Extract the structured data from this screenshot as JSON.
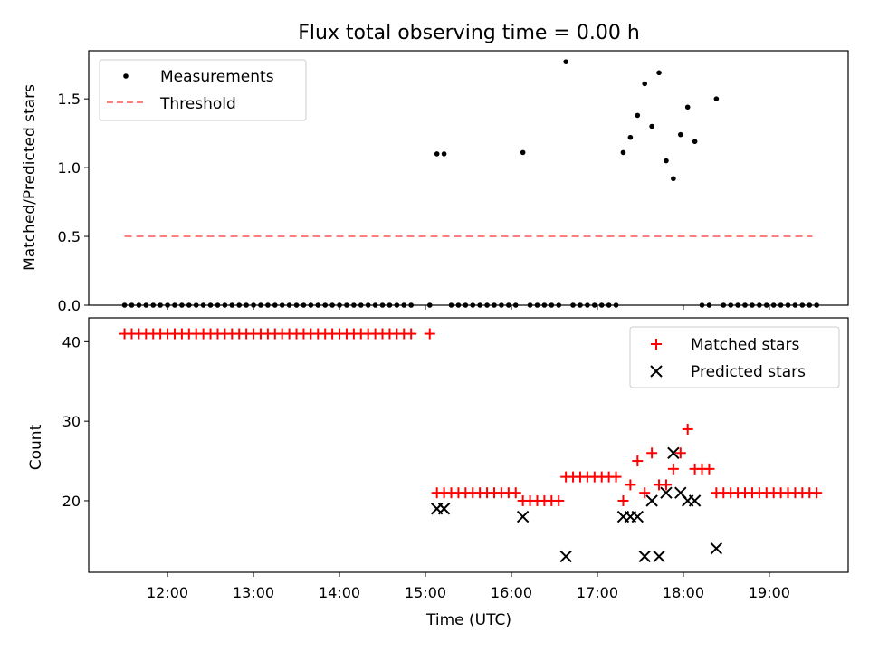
{
  "figure": {
    "title": "Flux total observing time = 0.00 h",
    "xlabel": "Time (UTC)"
  },
  "chart_data": [
    {
      "type": "scatter",
      "panel": "top",
      "ylabel": "Matched/Predicted stars",
      "xlim": [
        "11:05",
        "19:55"
      ],
      "ylim": [
        0,
        1.85
      ],
      "yticks": [
        "0.0",
        "0.5",
        "1.0",
        "1.5"
      ],
      "xticks": [
        "12:00",
        "13:00",
        "14:00",
        "15:00",
        "16:00",
        "17:00",
        "18:00",
        "19:00"
      ],
      "legend_position": "top-left",
      "series": [
        {
          "name": "Measurements",
          "marker": "dot",
          "color": "#000000",
          "points": [
            [
              "11:30",
              0
            ],
            [
              "11:35",
              0
            ],
            [
              "11:40",
              0
            ],
            [
              "11:45",
              0
            ],
            [
              "11:50",
              0
            ],
            [
              "11:55",
              0
            ],
            [
              "12:00",
              0
            ],
            [
              "12:05",
              0
            ],
            [
              "12:10",
              0
            ],
            [
              "12:15",
              0
            ],
            [
              "12:20",
              0
            ],
            [
              "12:25",
              0
            ],
            [
              "12:30",
              0
            ],
            [
              "12:35",
              0
            ],
            [
              "12:40",
              0
            ],
            [
              "12:45",
              0
            ],
            [
              "12:50",
              0
            ],
            [
              "12:55",
              0
            ],
            [
              "13:00",
              0
            ],
            [
              "13:05",
              0
            ],
            [
              "13:10",
              0
            ],
            [
              "13:15",
              0
            ],
            [
              "13:20",
              0
            ],
            [
              "13:25",
              0
            ],
            [
              "13:30",
              0
            ],
            [
              "13:35",
              0
            ],
            [
              "13:40",
              0
            ],
            [
              "13:45",
              0
            ],
            [
              "13:50",
              0
            ],
            [
              "13:55",
              0
            ],
            [
              "14:00",
              0
            ],
            [
              "14:05",
              0
            ],
            [
              "14:10",
              0
            ],
            [
              "14:15",
              0
            ],
            [
              "14:20",
              0
            ],
            [
              "14:25",
              0
            ],
            [
              "14:30",
              0
            ],
            [
              "14:35",
              0
            ],
            [
              "14:40",
              0
            ],
            [
              "14:45",
              0
            ],
            [
              "14:50",
              0
            ],
            [
              "15:03",
              0
            ],
            [
              "15:08",
              1.1
            ],
            [
              "15:13",
              1.1
            ],
            [
              "15:18",
              0
            ],
            [
              "15:23",
              0
            ],
            [
              "15:28",
              0
            ],
            [
              "15:33",
              0
            ],
            [
              "15:38",
              0
            ],
            [
              "15:43",
              0
            ],
            [
              "15:48",
              0
            ],
            [
              "15:53",
              0
            ],
            [
              "15:58",
              0
            ],
            [
              "16:03",
              0
            ],
            [
              "16:08",
              1.11
            ],
            [
              "16:13",
              0
            ],
            [
              "16:18",
              0
            ],
            [
              "16:23",
              0
            ],
            [
              "16:28",
              0
            ],
            [
              "16:33",
              0
            ],
            [
              "16:38",
              1.77
            ],
            [
              "16:43",
              0
            ],
            [
              "16:48",
              0
            ],
            [
              "16:53",
              0
            ],
            [
              "16:58",
              0
            ],
            [
              "17:03",
              0
            ],
            [
              "17:08",
              0
            ],
            [
              "17:13",
              0
            ],
            [
              "17:18",
              1.11
            ],
            [
              "17:23",
              1.22
            ],
            [
              "17:28",
              1.38
            ],
            [
              "17:33",
              1.61
            ],
            [
              "17:38",
              1.3
            ],
            [
              "17:43",
              1.69
            ],
            [
              "17:48",
              1.05
            ],
            [
              "17:53",
              0.92
            ],
            [
              "17:58",
              1.24
            ],
            [
              "18:03",
              1.44
            ],
            [
              "18:08",
              1.19
            ],
            [
              "18:13",
              0
            ],
            [
              "18:18",
              0
            ],
            [
              "18:23",
              1.5
            ],
            [
              "18:28",
              0
            ],
            [
              "18:33",
              0
            ],
            [
              "18:38",
              0
            ],
            [
              "18:43",
              0
            ],
            [
              "18:48",
              0
            ],
            [
              "18:53",
              0
            ],
            [
              "18:58",
              0
            ],
            [
              "19:03",
              0
            ],
            [
              "19:08",
              0
            ],
            [
              "19:13",
              0
            ],
            [
              "19:18",
              0
            ],
            [
              "19:23",
              0
            ],
            [
              "19:28",
              0
            ],
            [
              "19:33",
              0
            ]
          ]
        },
        {
          "name": "Threshold",
          "marker": "dashed-line",
          "color": "#ff7f7f",
          "points": [
            [
              "11:30",
              0.5
            ],
            [
              "19:30",
              0.5
            ]
          ]
        }
      ]
    },
    {
      "type": "scatter",
      "panel": "bottom",
      "ylabel": "Count",
      "xlim": [
        "11:05",
        "19:55"
      ],
      "ylim": [
        11,
        43
      ],
      "yticks": [
        "20",
        "30",
        "40"
      ],
      "xticks": [
        "12:00",
        "13:00",
        "14:00",
        "15:00",
        "16:00",
        "17:00",
        "18:00",
        "19:00"
      ],
      "legend_position": "top-right",
      "series": [
        {
          "name": "Matched stars",
          "marker": "plus",
          "color": "#ff0000",
          "points": [
            [
              "11:30",
              41
            ],
            [
              "11:35",
              41
            ],
            [
              "11:40",
              41
            ],
            [
              "11:45",
              41
            ],
            [
              "11:50",
              41
            ],
            [
              "11:55",
              41
            ],
            [
              "12:00",
              41
            ],
            [
              "12:05",
              41
            ],
            [
              "12:10",
              41
            ],
            [
              "12:15",
              41
            ],
            [
              "12:20",
              41
            ],
            [
              "12:25",
              41
            ],
            [
              "12:30",
              41
            ],
            [
              "12:35",
              41
            ],
            [
              "12:40",
              41
            ],
            [
              "12:45",
              41
            ],
            [
              "12:50",
              41
            ],
            [
              "12:55",
              41
            ],
            [
              "13:00",
              41
            ],
            [
              "13:05",
              41
            ],
            [
              "13:10",
              41
            ],
            [
              "13:15",
              41
            ],
            [
              "13:20",
              41
            ],
            [
              "13:25",
              41
            ],
            [
              "13:30",
              41
            ],
            [
              "13:35",
              41
            ],
            [
              "13:40",
              41
            ],
            [
              "13:45",
              41
            ],
            [
              "13:50",
              41
            ],
            [
              "13:55",
              41
            ],
            [
              "14:00",
              41
            ],
            [
              "14:05",
              41
            ],
            [
              "14:10",
              41
            ],
            [
              "14:15",
              41
            ],
            [
              "14:20",
              41
            ],
            [
              "14:25",
              41
            ],
            [
              "14:30",
              41
            ],
            [
              "14:35",
              41
            ],
            [
              "14:40",
              41
            ],
            [
              "14:45",
              41
            ],
            [
              "14:50",
              41
            ],
            [
              "15:03",
              41
            ],
            [
              "15:08",
              21
            ],
            [
              "15:13",
              21
            ],
            [
              "15:18",
              21
            ],
            [
              "15:23",
              21
            ],
            [
              "15:28",
              21
            ],
            [
              "15:33",
              21
            ],
            [
              "15:38",
              21
            ],
            [
              "15:43",
              21
            ],
            [
              "15:48",
              21
            ],
            [
              "15:53",
              21
            ],
            [
              "15:58",
              21
            ],
            [
              "16:03",
              21
            ],
            [
              "16:08",
              20
            ],
            [
              "16:13",
              20
            ],
            [
              "16:18",
              20
            ],
            [
              "16:23",
              20
            ],
            [
              "16:28",
              20
            ],
            [
              "16:33",
              20
            ],
            [
              "16:38",
              23
            ],
            [
              "16:43",
              23
            ],
            [
              "16:48",
              23
            ],
            [
              "16:53",
              23
            ],
            [
              "16:58",
              23
            ],
            [
              "17:03",
              23
            ],
            [
              "17:08",
              23
            ],
            [
              "17:13",
              23
            ],
            [
              "17:18",
              20
            ],
            [
              "17:23",
              22
            ],
            [
              "17:28",
              25
            ],
            [
              "17:33",
              21
            ],
            [
              "17:38",
              26
            ],
            [
              "17:43",
              22
            ],
            [
              "17:48",
              22
            ],
            [
              "17:53",
              24
            ],
            [
              "17:58",
              26
            ],
            [
              "18:03",
              29
            ],
            [
              "18:08",
              24
            ],
            [
              "18:13",
              24
            ],
            [
              "18:18",
              24
            ],
            [
              "18:23",
              21
            ],
            [
              "18:28",
              21
            ],
            [
              "18:33",
              21
            ],
            [
              "18:38",
              21
            ],
            [
              "18:43",
              21
            ],
            [
              "18:48",
              21
            ],
            [
              "18:53",
              21
            ],
            [
              "18:58",
              21
            ],
            [
              "19:03",
              21
            ],
            [
              "19:08",
              21
            ],
            [
              "19:13",
              21
            ],
            [
              "19:18",
              21
            ],
            [
              "19:23",
              21
            ],
            [
              "19:28",
              21
            ],
            [
              "19:33",
              21
            ]
          ]
        },
        {
          "name": "Predicted stars",
          "marker": "x",
          "color": "#000000",
          "points": [
            [
              "15:08",
              19
            ],
            [
              "15:13",
              19
            ],
            [
              "16:08",
              18
            ],
            [
              "16:38",
              13
            ],
            [
              "17:18",
              18
            ],
            [
              "17:23",
              18
            ],
            [
              "17:28",
              18
            ],
            [
              "17:33",
              13
            ],
            [
              "17:38",
              20
            ],
            [
              "17:43",
              13
            ],
            [
              "17:48",
              21
            ],
            [
              "17:53",
              26
            ],
            [
              "17:58",
              21
            ],
            [
              "18:03",
              20
            ],
            [
              "18:08",
              20
            ],
            [
              "18:23",
              14
            ]
          ]
        }
      ]
    }
  ]
}
